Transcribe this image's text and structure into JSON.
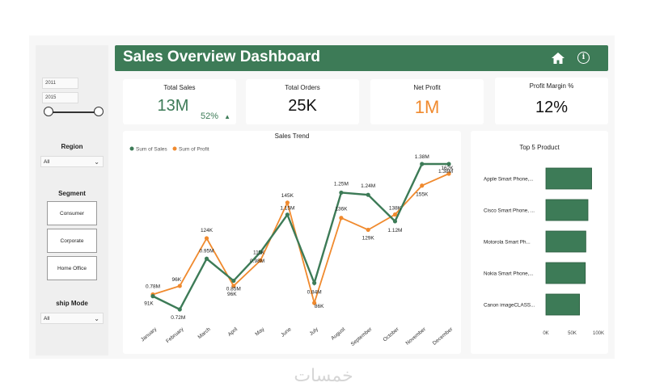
{
  "header": {
    "title": "Sales Overview Dashboard"
  },
  "filters": {
    "year_start": "2011",
    "year_end": "2015",
    "region_label": "Region",
    "region_value": "All",
    "segment_label": "Segment",
    "segments": [
      "Consumer",
      "Corporate",
      "Home Office"
    ],
    "ship_mode_label": "ship Mode",
    "ship_mode_value": "All"
  },
  "kpis": {
    "total_sales_label": "Total Sales",
    "total_sales_value": "13M",
    "total_sales_change": "52%",
    "total_orders_label": "Total Orders",
    "total_orders_value": "25K",
    "net_profit_label": "Net Profit",
    "net_profit_value": "1M",
    "profit_margin_label": "Profit Margin %",
    "profit_margin_value": "12%"
  },
  "colors": {
    "sales": "#3d7b57",
    "profit": "#f08a2e",
    "header": "#3d7b57",
    "net_profit": "#f08a2e"
  },
  "watermark": "خمسات",
  "chart_data": [
    {
      "type": "line",
      "title": "Sales Trend",
      "categories": [
        "January",
        "February",
        "March",
        "April",
        "May",
        "June",
        "July",
        "August",
        "September",
        "October",
        "November",
        "December"
      ],
      "series": [
        {
          "name": "Sum of Sales",
          "values": [
            0.78,
            0.72,
            0.95,
            0.85,
            0.98,
            1.15,
            0.84,
            1.25,
            1.24,
            1.12,
            1.38,
            1.38
          ],
          "labels": [
            "0.78M",
            "0.72M",
            "0.95M",
            "0.85M",
            "0.98M",
            "1.15M",
            "0.84M",
            "1.25M",
            "1.24M",
            "1.12M",
            "1.38M",
            "1.38M"
          ]
        },
        {
          "name": "Sum of Profit",
          "values": [
            91,
            96,
            124,
            96,
            111,
            145,
            86,
            136,
            129,
            138,
            155,
            162
          ],
          "labels": [
            "91K",
            "96K",
            "124K",
            "96K",
            "111K",
            "145K",
            "86K",
            "136K",
            "129K",
            "138K",
            "155K",
            "162K"
          ]
        }
      ],
      "legend": "top-left"
    },
    {
      "type": "bar",
      "orientation": "horizontal",
      "title": "Top 5 Product",
      "categories": [
        "Apple Smart Phone,...",
        "Cisco Smart Phone, ...",
        "Motorola Smart Ph...",
        "Nokia Smart Phone,...",
        "Canon imageCLASS..."
      ],
      "values": [
        87,
        80,
        76,
        75,
        64
      ],
      "ticks": [
        "0K",
        "50K",
        "100K"
      ],
      "xlim": [
        0,
        100
      ]
    }
  ]
}
